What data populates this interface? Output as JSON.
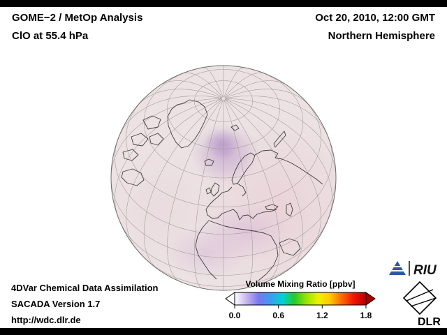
{
  "header": {
    "title_line1": "GOME−2 / MetOp Analysis",
    "title_line2": "ClO at 55.4 hPa",
    "datetime": "Oct 20, 2010, 12:00 GMT",
    "hemisphere": "Northern Hemisphere"
  },
  "footer": {
    "line1": "4DVar Chemical Data Assimilation",
    "line2": "SACADA Version 1.7",
    "line3": "http://wdc.dlr.de"
  },
  "colorbar": {
    "title": "Volume Mixing Ratio [ppbv]",
    "ticks": [
      "0.0",
      "0.6",
      "1.2",
      "1.8"
    ],
    "min": 0.0,
    "max": 1.8,
    "below_range_color": "#ffffff",
    "above_range_color": "#a80000",
    "gradient_stops": [
      "#ffffff",
      "#c8b4f0",
      "#7878f0",
      "#3c9cf0",
      "#00d2d2",
      "#28c828",
      "#96e400",
      "#f0f000",
      "#ffc800",
      "#ff6400",
      "#f01400",
      "#b40000"
    ]
  },
  "map": {
    "type": "orthographic-globe",
    "region": "Northern Hemisphere",
    "quantity": "ClO volume mixing ratio",
    "pressure_level": "55.4 hPa",
    "overlay_description": "pale pink disc with purple ClO enhancement over the Norwegian Sea / Scandinavia and diffuse pink over North Africa and eastern areas"
  },
  "logos": {
    "riu": "RIU",
    "dlr": "DLR",
    "riu_color": "#2d57a8"
  }
}
